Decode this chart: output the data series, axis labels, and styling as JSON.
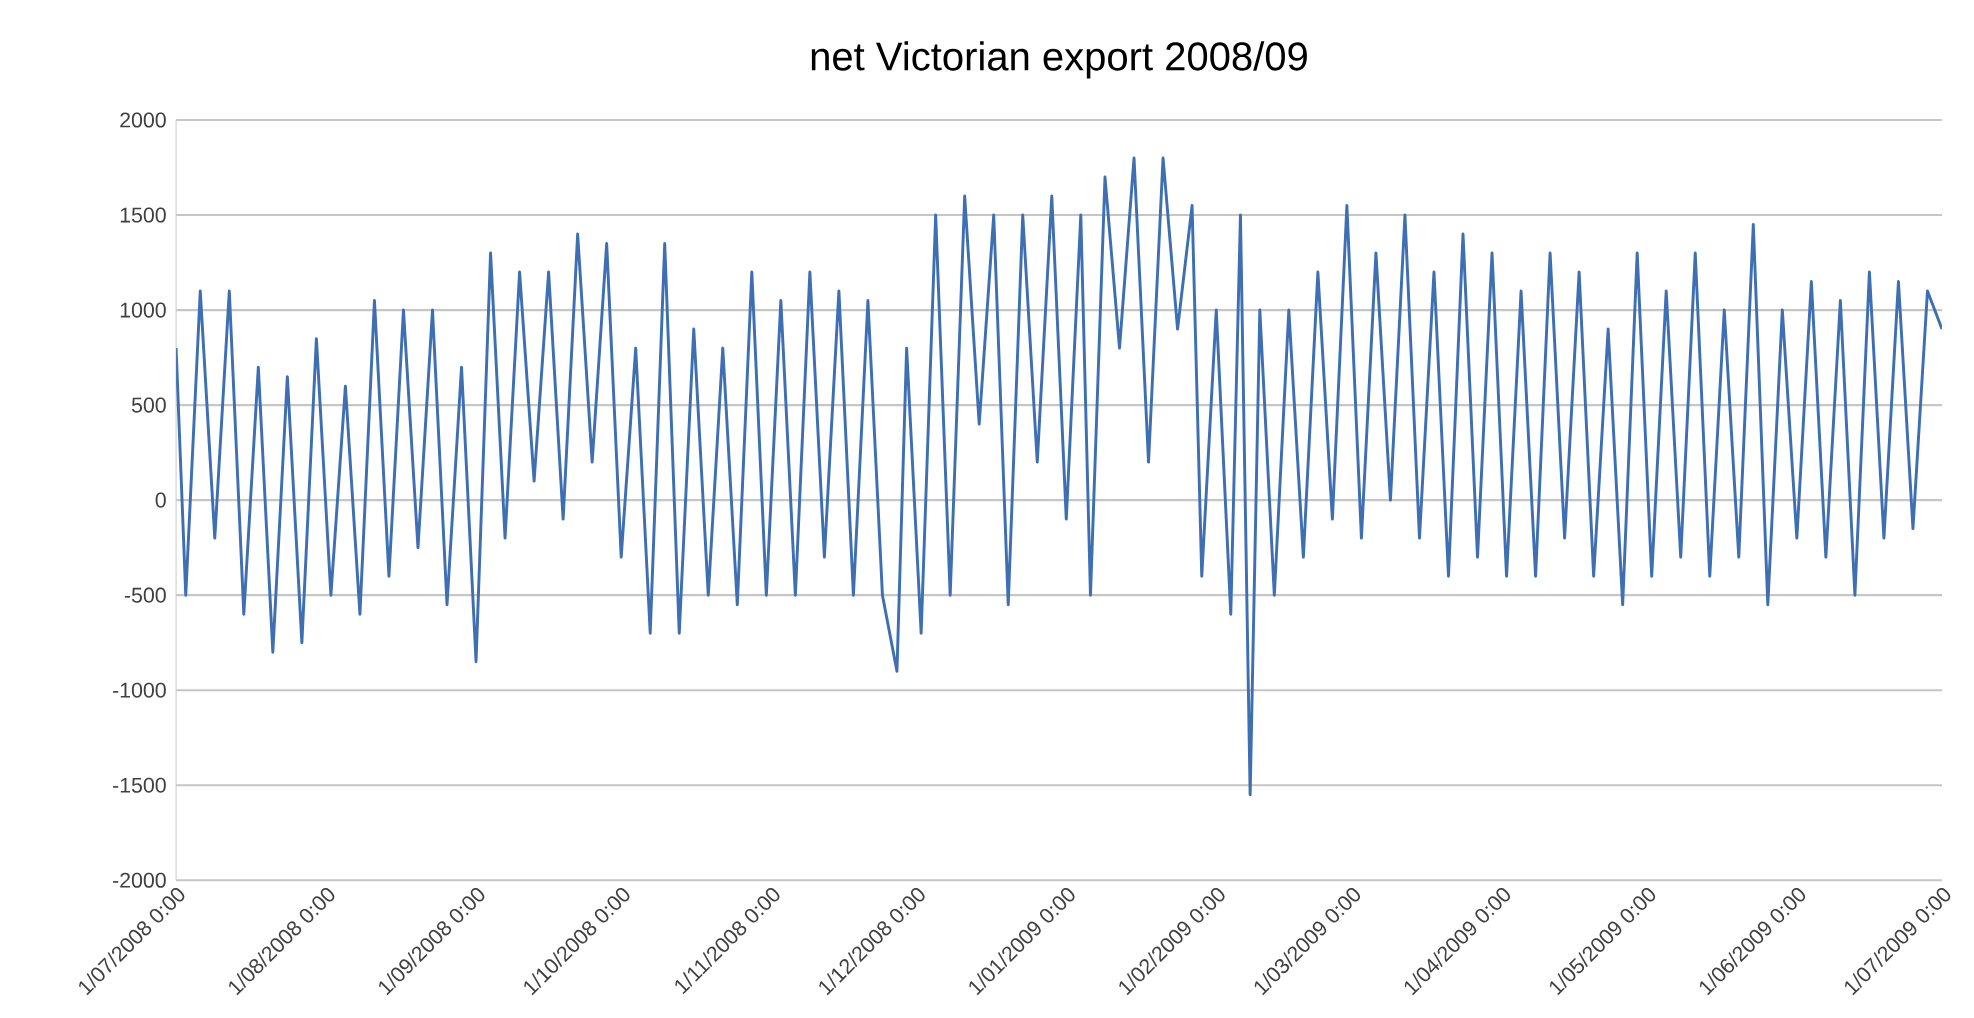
{
  "chart_data": {
    "type": "line",
    "title": "net Victorian export 2008/09",
    "x": [
      "2008-07-01",
      "2008-07-03",
      "2008-07-06",
      "2008-07-09",
      "2008-07-12",
      "2008-07-15",
      "2008-07-18",
      "2008-07-21",
      "2008-07-24",
      "2008-07-27",
      "2008-07-30",
      "2008-08-02",
      "2008-08-05",
      "2008-08-08",
      "2008-08-11",
      "2008-08-14",
      "2008-08-17",
      "2008-08-20",
      "2008-08-23",
      "2008-08-26",
      "2008-08-29",
      "2008-09-01",
      "2008-09-04",
      "2008-09-07",
      "2008-09-10",
      "2008-09-13",
      "2008-09-16",
      "2008-09-19",
      "2008-09-22",
      "2008-09-25",
      "2008-09-28",
      "2008-10-01",
      "2008-10-04",
      "2008-10-07",
      "2008-10-10",
      "2008-10-13",
      "2008-10-16",
      "2008-10-19",
      "2008-10-22",
      "2008-10-25",
      "2008-10-28",
      "2008-10-31",
      "2008-11-03",
      "2008-11-06",
      "2008-11-09",
      "2008-11-12",
      "2008-11-15",
      "2008-11-18",
      "2008-11-21",
      "2008-11-24",
      "2008-11-27",
      "2008-11-29",
      "2008-12-02",
      "2008-12-05",
      "2008-12-08",
      "2008-12-11",
      "2008-12-14",
      "2008-12-17",
      "2008-12-20",
      "2008-12-23",
      "2008-12-26",
      "2008-12-29",
      "2009-01-01",
      "2009-01-04",
      "2009-01-06",
      "2009-01-09",
      "2009-01-12",
      "2009-01-15",
      "2009-01-18",
      "2009-01-21",
      "2009-01-24",
      "2009-01-27",
      "2009-01-29",
      "2009-02-01",
      "2009-02-04",
      "2009-02-06",
      "2009-02-08",
      "2009-02-10",
      "2009-02-13",
      "2009-02-16",
      "2009-02-19",
      "2009-02-22",
      "2009-02-25",
      "2009-02-28",
      "2009-03-03",
      "2009-03-06",
      "2009-03-09",
      "2009-03-12",
      "2009-03-15",
      "2009-03-18",
      "2009-03-21",
      "2009-03-24",
      "2009-03-27",
      "2009-03-30",
      "2009-04-02",
      "2009-04-05",
      "2009-04-08",
      "2009-04-11",
      "2009-04-14",
      "2009-04-17",
      "2009-04-20",
      "2009-04-23",
      "2009-04-26",
      "2009-04-29",
      "2009-05-02",
      "2009-05-05",
      "2009-05-08",
      "2009-05-11",
      "2009-05-14",
      "2009-05-17",
      "2009-05-20",
      "2009-05-23",
      "2009-05-26",
      "2009-05-29",
      "2009-06-01",
      "2009-06-04",
      "2009-06-07",
      "2009-06-10",
      "2009-06-13",
      "2009-06-16",
      "2009-06-19",
      "2009-06-22",
      "2009-06-25",
      "2009-06-28",
      "2009-07-01"
    ],
    "series": [
      {
        "color": "#3e6fb3",
        "values": [
          800,
          -500,
          1100,
          -200,
          1100,
          -600,
          700,
          -800,
          650,
          -750,
          850,
          -500,
          600,
          -600,
          1050,
          -400,
          1000,
          -250,
          1000,
          -550,
          700,
          -850,
          1300,
          -200,
          1200,
          100,
          1200,
          -100,
          1400,
          200,
          1350,
          -300,
          800,
          -700,
          1350,
          -700,
          900,
          -500,
          800,
          -550,
          1200,
          -500,
          1050,
          -500,
          1200,
          -300,
          1100,
          -500,
          1050,
          -500,
          -900,
          800,
          -700,
          1500,
          -500,
          1600,
          400,
          1500,
          -550,
          1500,
          200,
          1600,
          -100,
          1500,
          -500,
          1700,
          800,
          1800,
          200,
          1800,
          900,
          1550,
          -400,
          1000,
          -600,
          1500,
          -1550,
          1000,
          -500,
          1000,
          -300,
          1200,
          -100,
          1550,
          -200,
          1300,
          0,
          1500,
          -200,
          1200,
          -400,
          1400,
          -300,
          1300,
          -400,
          1100,
          -400,
          1300,
          -200,
          1200,
          -400,
          900,
          -550,
          1300,
          -400,
          1100,
          -300,
          1300,
          -400,
          1000,
          -300,
          1450,
          -550,
          1000,
          -200,
          1150,
          -300,
          1050,
          -500,
          1200,
          -200,
          1150,
          -150,
          1100,
          900
        ]
      }
    ],
    "xlim": [
      "2008-07-01",
      "2009-07-01"
    ],
    "xticks": [
      {
        "value": "2008-07-01",
        "label": "1/07/2008 0:00"
      },
      {
        "value": "2008-08-01",
        "label": "1/08/2008 0:00"
      },
      {
        "value": "2008-09-01",
        "label": "1/09/2008 0:00"
      },
      {
        "value": "2008-10-01",
        "label": "1/10/2008 0:00"
      },
      {
        "value": "2008-11-01",
        "label": "1/11/2008 0:00"
      },
      {
        "value": "2008-12-01",
        "label": "1/12/2008 0:00"
      },
      {
        "value": "2009-01-01",
        "label": "1/01/2009 0:00"
      },
      {
        "value": "2009-02-01",
        "label": "1/02/2009 0:00"
      },
      {
        "value": "2009-03-01",
        "label": "1/03/2009 0:00"
      },
      {
        "value": "2009-04-01",
        "label": "1/04/2009 0:00"
      },
      {
        "value": "2009-05-01",
        "label": "1/05/2009 0:00"
      },
      {
        "value": "2009-06-01",
        "label": "1/06/2009 0:00"
      },
      {
        "value": "2009-07-01",
        "label": "1/07/2009 0:00"
      }
    ],
    "ylim": [
      -2000,
      2000
    ],
    "yticks": [
      -2000,
      -1500,
      -1000,
      -500,
      0,
      500,
      1000,
      1500,
      2000
    ],
    "grid": "y",
    "marker": "none",
    "line_style": "solid"
  }
}
